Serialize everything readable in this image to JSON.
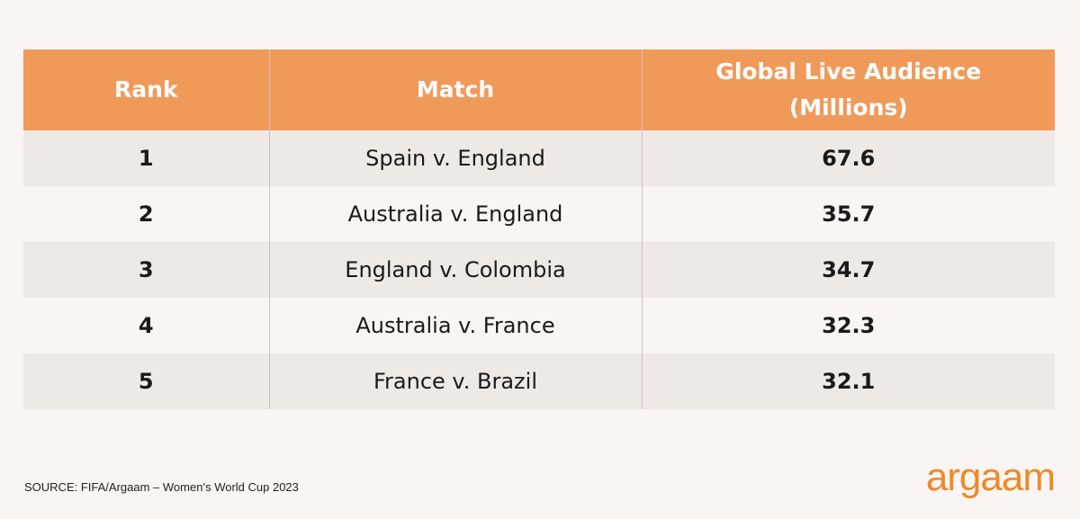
{
  "table": {
    "columns": [
      "Rank",
      "Match",
      "Global Live Audience (Millions)"
    ],
    "rows": [
      [
        1,
        "Spain v. England",
        67.6
      ],
      [
        2,
        "Australia v. England",
        35.7
      ],
      [
        3,
        "England v. Colombia",
        34.7
      ],
      [
        4,
        "Australia v. France",
        32.3
      ],
      [
        5,
        "France v. Brazil",
        32.1
      ]
    ]
  },
  "footer": {
    "source": "SOURCE: FIFA/Argaam – Women’s World Cup 2023",
    "logo": "argaam"
  }
}
